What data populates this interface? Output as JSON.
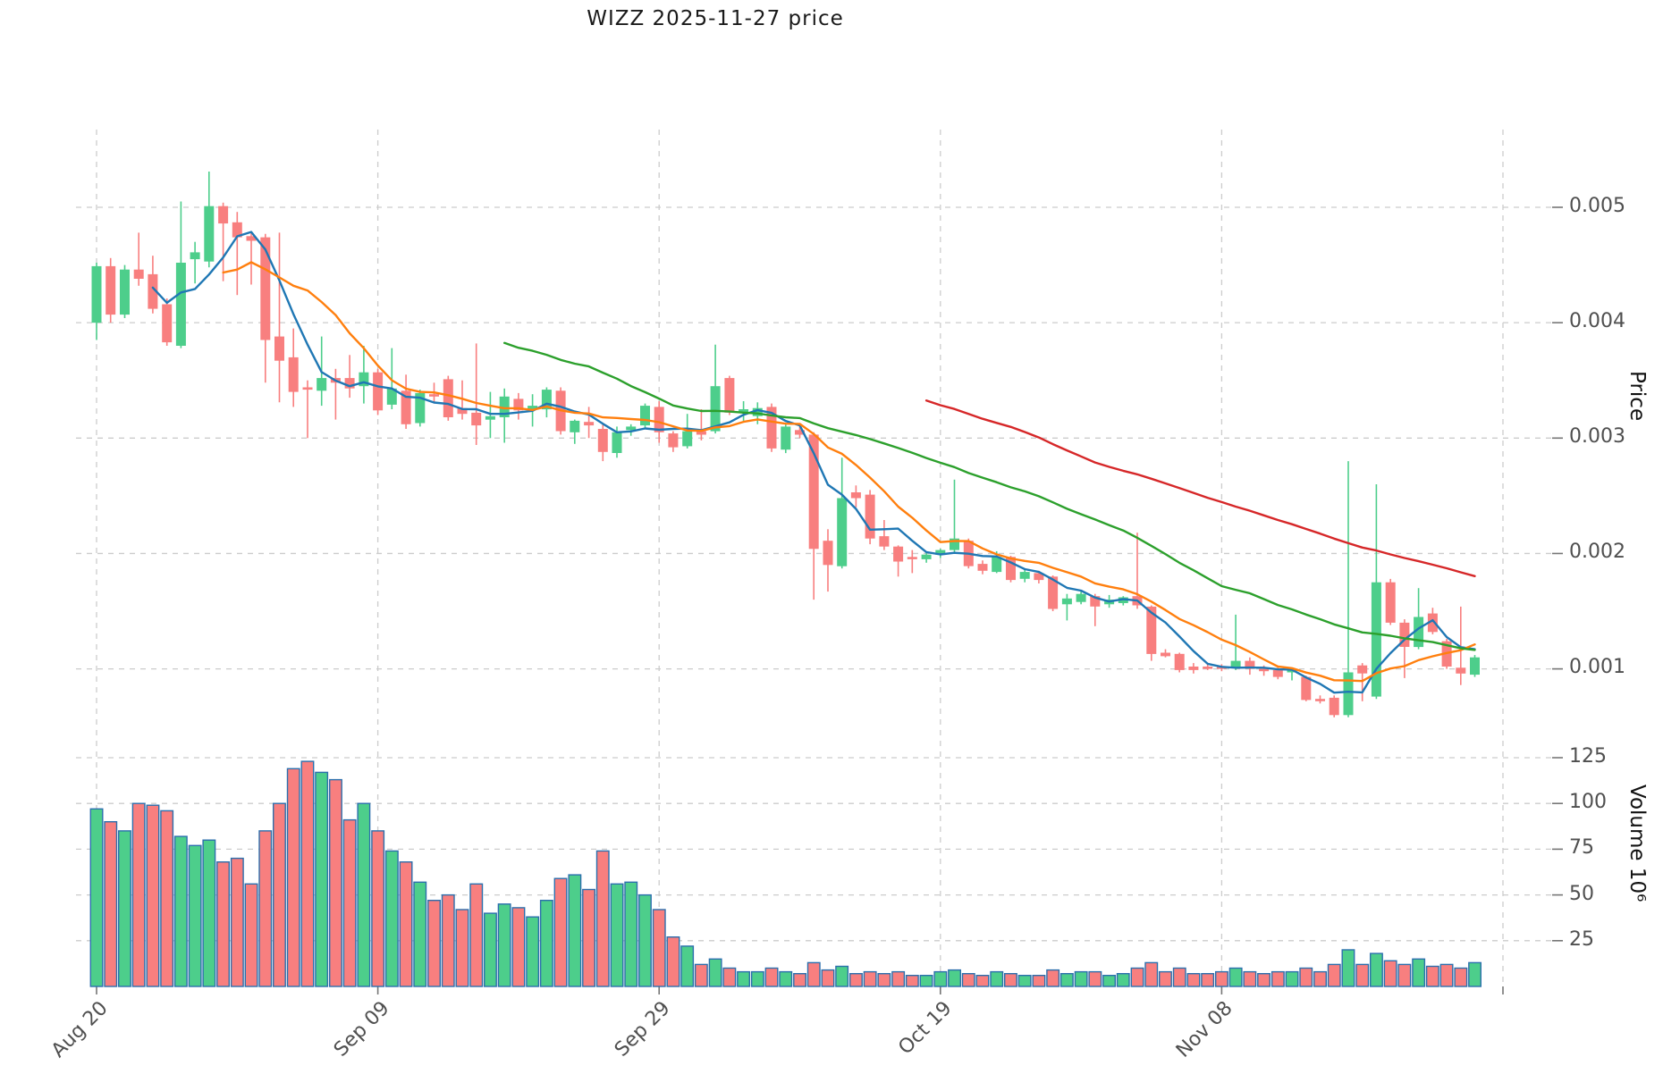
{
  "header": {
    "title": "WIZZ  2025-11-27  price"
  },
  "axes": {
    "price_label": "Price",
    "volume_label": "Volume  10⁶",
    "price_ticks": [
      "0.005",
      "0.004",
      "0.003",
      "0.002",
      "0.001"
    ],
    "volume_ticks": [
      "125",
      "100",
      "75",
      "50",
      "25"
    ],
    "x_ticks": [
      "Aug 20",
      "Sep 09",
      "Sep 29",
      "Oct 19",
      "Nov 08"
    ]
  },
  "chart_data": {
    "type": "candlestick+volume",
    "title": "WIZZ  2025-11-27  price",
    "date_start": "2025-08-20",
    "date_end": "2025-11-26",
    "frequency": "daily",
    "x_gridline_day_indices": [
      0,
      20,
      40,
      60,
      80,
      100
    ],
    "x_tick_labels": [
      "Aug 20",
      "Sep 09",
      "Sep 29",
      "Oct 19",
      "Nov 08"
    ],
    "price_gridlines": [
      0.005,
      0.004,
      0.003,
      0.002,
      0.001
    ],
    "volume_gridlines_millions": [
      25,
      50,
      75,
      100,
      125
    ],
    "price_scale": 1e-05,
    "ohlc_x1e5": [
      [
        400,
        452,
        385,
        449
      ],
      [
        449,
        456,
        400,
        407
      ],
      [
        407,
        450,
        404,
        446
      ],
      [
        446,
        478,
        432,
        438
      ],
      [
        442,
        458,
        408,
        412
      ],
      [
        416,
        421,
        380,
        383
      ],
      [
        380,
        505,
        378,
        452
      ],
      [
        455,
        470,
        434,
        461
      ],
      [
        453,
        531,
        448,
        501
      ],
      [
        501,
        504,
        436,
        486
      ],
      [
        487,
        496,
        424,
        474
      ],
      [
        475,
        478,
        433,
        471
      ],
      [
        474,
        477,
        348,
        385
      ],
      [
        388,
        478,
        331,
        367
      ],
      [
        370,
        395,
        327,
        340
      ],
      [
        344,
        350,
        300,
        342
      ],
      [
        341,
        388,
        328,
        352
      ],
      [
        352,
        360,
        316,
        348
      ],
      [
        352,
        372,
        335,
        343
      ],
      [
        345,
        380,
        330,
        357
      ],
      [
        357,
        360,
        320,
        324
      ],
      [
        329,
        378,
        325,
        343
      ],
      [
        341,
        355,
        308,
        312
      ],
      [
        313,
        342,
        310,
        339
      ],
      [
        338,
        348,
        330,
        336
      ],
      [
        351,
        354,
        315,
        318
      ],
      [
        326,
        350,
        316,
        321
      ],
      [
        322,
        382,
        294,
        311
      ],
      [
        316,
        340,
        300,
        319
      ],
      [
        318,
        343,
        296,
        336
      ],
      [
        334,
        339,
        316,
        324
      ],
      [
        325,
        338,
        310,
        328
      ],
      [
        325,
        344,
        318,
        342
      ],
      [
        341,
        344,
        303,
        306
      ],
      [
        305,
        316,
        295,
        315
      ],
      [
        314,
        327,
        300,
        311
      ],
      [
        308,
        312,
        280,
        288
      ],
      [
        287,
        310,
        283,
        305
      ],
      [
        307,
        312,
        302,
        310
      ],
      [
        311,
        330,
        308,
        328
      ],
      [
        327,
        332,
        296,
        305
      ],
      [
        304,
        306,
        288,
        292
      ],
      [
        293,
        321,
        291,
        306
      ],
      [
        306,
        325,
        298,
        303
      ],
      [
        306,
        381,
        304,
        345
      ],
      [
        352,
        354,
        320,
        322
      ],
      [
        322,
        332,
        315,
        325
      ],
      [
        319,
        331,
        312,
        326
      ],
      [
        327,
        330,
        288,
        291
      ],
      [
        290,
        312,
        287,
        310
      ],
      [
        307,
        311,
        300,
        303
      ],
      [
        303,
        305,
        160,
        204
      ],
      [
        211,
        221,
        167,
        190
      ],
      [
        189,
        283,
        187,
        248
      ],
      [
        253,
        259,
        240,
        248
      ],
      [
        251,
        255,
        208,
        213
      ],
      [
        215,
        229,
        203,
        206
      ],
      [
        206,
        207,
        180,
        193
      ],
      [
        197,
        203,
        183,
        195
      ],
      [
        195,
        201,
        192,
        199
      ],
      [
        199,
        204,
        196,
        203
      ],
      [
        203,
        264,
        201,
        213
      ],
      [
        211,
        213,
        187,
        189
      ],
      [
        191,
        194,
        182,
        185
      ],
      [
        184,
        202,
        183,
        197
      ],
      [
        197,
        198,
        175,
        177
      ],
      [
        178,
        186,
        175,
        184
      ],
      [
        183,
        185,
        174,
        177
      ],
      [
        180,
        181,
        150,
        152
      ],
      [
        156,
        165,
        142,
        161
      ],
      [
        158,
        167,
        156,
        165
      ],
      [
        163,
        165,
        137,
        154
      ],
      [
        156,
        164,
        153,
        160
      ],
      [
        157,
        163,
        155,
        162
      ],
      [
        163,
        218,
        152,
        155
      ],
      [
        154,
        155,
        107,
        113
      ],
      [
        114,
        117,
        110,
        111
      ],
      [
        113,
        114,
        97,
        99
      ],
      [
        102,
        105,
        96,
        99
      ],
      [
        102,
        104,
        99,
        100
      ],
      [
        102,
        104,
        98,
        100
      ],
      [
        101,
        147,
        99,
        107
      ],
      [
        107,
        110,
        95,
        100
      ],
      [
        100,
        103,
        94,
        98
      ],
      [
        99,
        101,
        91,
        93
      ],
      [
        97,
        100,
        90,
        99
      ],
      [
        93,
        94,
        72,
        73
      ],
      [
        74,
        77,
        70,
        72
      ],
      [
        75,
        77,
        58,
        60
      ],
      [
        60,
        280,
        58,
        97
      ],
      [
        103,
        105,
        72,
        96
      ],
      [
        76,
        260,
        74,
        175
      ],
      [
        175,
        178,
        138,
        140
      ],
      [
        140,
        143,
        92,
        119
      ],
      [
        119,
        170,
        117,
        145
      ],
      [
        148,
        153,
        130,
        132
      ],
      [
        124,
        126,
        100,
        102
      ],
      [
        101,
        154,
        86,
        96
      ],
      [
        95,
        112,
        93,
        110
      ]
    ],
    "volume_millions": [
      97,
      90,
      85,
      100,
      99,
      96,
      82,
      77,
      80,
      68,
      70,
      56,
      85,
      100,
      119,
      123,
      117,
      113,
      91,
      100,
      85,
      74,
      68,
      57,
      47,
      50,
      42,
      56,
      40,
      45,
      43,
      38,
      47,
      59,
      61,
      53,
      74,
      56,
      57,
      50,
      42,
      27,
      22,
      12,
      15,
      10,
      8,
      8,
      10,
      8,
      7,
      13,
      9,
      11,
      7,
      8,
      7,
      8,
      6,
      6,
      8,
      9,
      7,
      6,
      8,
      7,
      6,
      6,
      9,
      7,
      8,
      8,
      6,
      7,
      10,
      13,
      8,
      10,
      7,
      7,
      8,
      10,
      8,
      7,
      8,
      8,
      10,
      8,
      12,
      20,
      12,
      18,
      14,
      12,
      15,
      11,
      12,
      10,
      13
    ],
    "moving_averages": {
      "windows": [
        5,
        10,
        30,
        60
      ],
      "colors": [
        "#1f77b4",
        "#ff7f0e",
        "#2ca02c",
        "#d62728"
      ]
    },
    "colors": {
      "up": "#4dce8b",
      "down": "#f87f7f",
      "volume_edge": "#2c6fad",
      "grid": "#cccccc",
      "tick": "#767676",
      "tick_label": "#4f4f4f"
    },
    "legend": "none",
    "grid": "dashed"
  }
}
